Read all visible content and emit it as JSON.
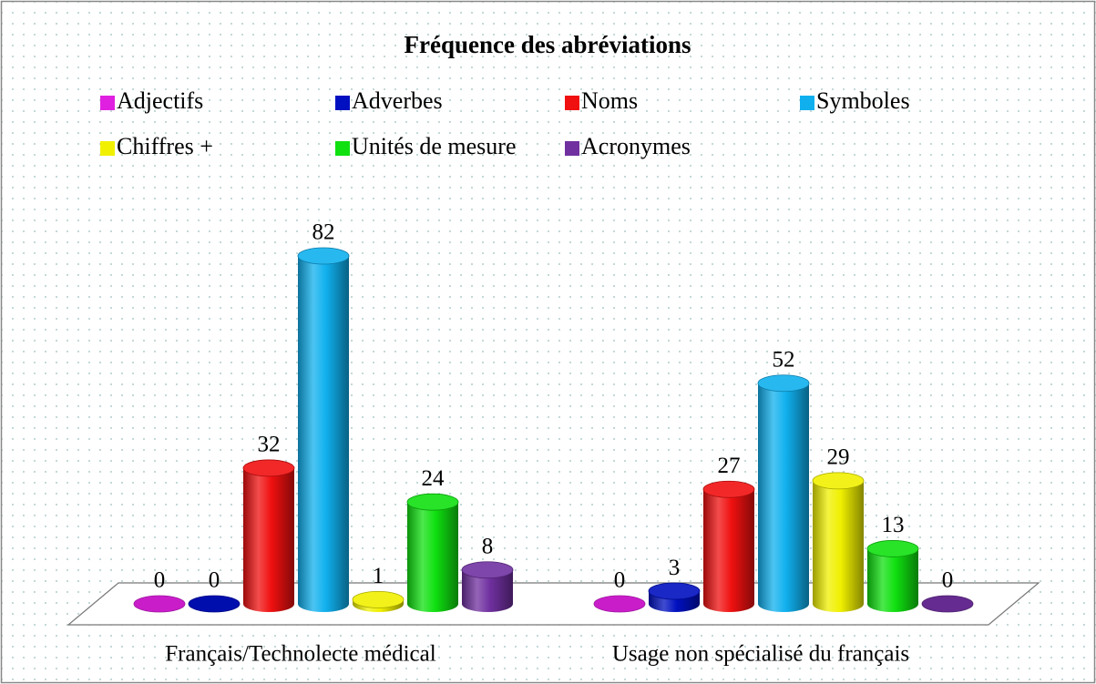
{
  "chart_data": {
    "type": "bar3d",
    "title": "Fréquence des abréviations",
    "categories": [
      "Français/Technolecte médical",
      "Usage non spécialisé du français"
    ],
    "series": [
      {
        "name": "Adjectifs",
        "color": "#e020e0",
        "values": [
          0,
          0
        ]
      },
      {
        "name": "Adverbes",
        "color": "#0010c0",
        "values": [
          0,
          3
        ]
      },
      {
        "name": "Noms",
        "color": "#f01010",
        "values": [
          32,
          27
        ]
      },
      {
        "name": "Symboles",
        "color": "#10b0ee",
        "values": [
          82,
          52
        ]
      },
      {
        "name": "Chiffres +",
        "color": "#f0f000",
        "values": [
          1,
          29
        ]
      },
      {
        "name": "Unités de mesure",
        "color": "#10e010",
        "values": [
          24,
          13
        ]
      },
      {
        "name": "Acronymes",
        "color": "#7030a0",
        "values": [
          8,
          0
        ]
      }
    ]
  }
}
